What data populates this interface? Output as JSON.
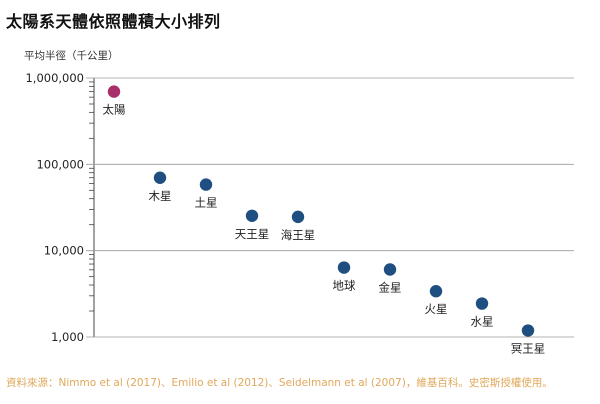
{
  "page": {
    "title": "太陽系天體依照體積大小排列",
    "source": "資料來源：Nimmo et al (2017)、Emilio et al (2012)、Seidelmann et al (2007)，維基百科。史密斯授權使用。"
  },
  "colors": {
    "sun": "#a8306a",
    "body": "#1f4e80",
    "axis": "#444444",
    "grid": "#9a9a9a",
    "source_text": "#e0a85a"
  },
  "chart_data": {
    "type": "scatter",
    "title": "太陽系天體依照體積大小排列",
    "ylabel": "平均半徑（千公里）",
    "xlabel": "",
    "y_scale": "log",
    "ylim": [
      1000,
      1000000
    ],
    "y_ticks": [
      1000,
      10000,
      100000,
      1000000
    ],
    "y_tick_labels": [
      "1,000",
      "10,000",
      "100,000",
      "1,000,000"
    ],
    "grid": false,
    "points": [
      {
        "label": "太陽",
        "value": 696000,
        "color": "sun"
      },
      {
        "label": "木星",
        "value": 69911,
        "color": "body"
      },
      {
        "label": "土星",
        "value": 58232,
        "color": "body"
      },
      {
        "label": "天王星",
        "value": 25362,
        "color": "body"
      },
      {
        "label": "海王星",
        "value": 24622,
        "color": "body"
      },
      {
        "label": "地球",
        "value": 6371,
        "color": "body"
      },
      {
        "label": "金星",
        "value": 6052,
        "color": "body"
      },
      {
        "label": "火星",
        "value": 3390,
        "color": "body"
      },
      {
        "label": "水星",
        "value": 2440,
        "color": "body"
      },
      {
        "label": "冥王星",
        "value": 1188,
        "color": "body"
      }
    ]
  }
}
